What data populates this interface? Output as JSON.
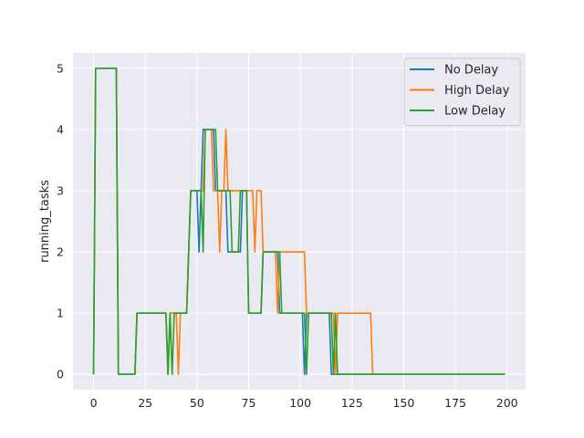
{
  "chart_data": {
    "type": "line",
    "title": "",
    "xlabel": "",
    "ylabel": "running_tasks",
    "xlim": [
      -9.95,
      208.95
    ],
    "ylim": [
      -0.25,
      5.25
    ],
    "xticks": [
      0,
      25,
      50,
      75,
      100,
      125,
      150,
      175,
      200
    ],
    "yticks": [
      0,
      1,
      2,
      3,
      4,
      5
    ],
    "grid": true,
    "legend_position": "top-right",
    "series": [
      {
        "name": "No Delay",
        "color": "#1f77b4",
        "points": [
          [
            0,
            0
          ],
          [
            1,
            5
          ],
          [
            11,
            5
          ],
          [
            12,
            0
          ],
          [
            20,
            0
          ],
          [
            21,
            1
          ],
          [
            35,
            1
          ],
          [
            36,
            0
          ],
          [
            37,
            1
          ],
          [
            45,
            1
          ],
          [
            47,
            3
          ],
          [
            50,
            3
          ],
          [
            51,
            2
          ],
          [
            52,
            3
          ],
          [
            53,
            4
          ],
          [
            58,
            4
          ],
          [
            59,
            3
          ],
          [
            64,
            3
          ],
          [
            65,
            2
          ],
          [
            71,
            2
          ],
          [
            72,
            3
          ],
          [
            74,
            3
          ],
          [
            75,
            1
          ],
          [
            81,
            1
          ],
          [
            82,
            2
          ],
          [
            89,
            2
          ],
          [
            90,
            1
          ],
          [
            101,
            1
          ],
          [
            102,
            0
          ],
          [
            103,
            1
          ],
          [
            114,
            1
          ],
          [
            115,
            0
          ],
          [
            199,
            0
          ]
        ]
      },
      {
        "name": "High Delay",
        "color": "#ff7f0e",
        "points": [
          [
            0,
            0
          ],
          [
            1,
            5
          ],
          [
            11,
            5
          ],
          [
            12,
            0
          ],
          [
            20,
            0
          ],
          [
            21,
            1
          ],
          [
            35,
            1
          ],
          [
            36,
            0
          ],
          [
            37,
            1
          ],
          [
            40,
            1
          ],
          [
            41,
            0
          ],
          [
            42,
            1
          ],
          [
            45,
            1
          ],
          [
            47,
            3
          ],
          [
            53,
            3
          ],
          [
            54,
            4
          ],
          [
            57,
            4
          ],
          [
            58,
            3
          ],
          [
            60,
            3
          ],
          [
            61,
            2
          ],
          [
            62,
            3
          ],
          [
            63,
            3
          ],
          [
            64,
            4
          ],
          [
            65,
            3
          ],
          [
            77,
            3
          ],
          [
            78,
            2
          ],
          [
            79,
            3
          ],
          [
            81,
            3
          ],
          [
            82,
            2
          ],
          [
            88,
            2
          ],
          [
            89,
            1
          ],
          [
            90,
            2
          ],
          [
            102,
            2
          ],
          [
            103,
            1
          ],
          [
            116,
            1
          ],
          [
            117,
            0
          ],
          [
            118,
            1
          ],
          [
            134,
            1
          ],
          [
            135,
            0
          ],
          [
            199,
            0
          ]
        ]
      },
      {
        "name": "Low Delay",
        "color": "#2ca02c",
        "points": [
          [
            0,
            0
          ],
          [
            1,
            5
          ],
          [
            11,
            5
          ],
          [
            12,
            0
          ],
          [
            20,
            0
          ],
          [
            21,
            1
          ],
          [
            35,
            1
          ],
          [
            36,
            0
          ],
          [
            37,
            1
          ],
          [
            38,
            0
          ],
          [
            39,
            1
          ],
          [
            45,
            1
          ],
          [
            47,
            3
          ],
          [
            52,
            3
          ],
          [
            53,
            2
          ],
          [
            54,
            4
          ],
          [
            59,
            4
          ],
          [
            60,
            3
          ],
          [
            66,
            3
          ],
          [
            67,
            2
          ],
          [
            70,
            2
          ],
          [
            71,
            3
          ],
          [
            74,
            3
          ],
          [
            75,
            1
          ],
          [
            81,
            1
          ],
          [
            82,
            2
          ],
          [
            90,
            2
          ],
          [
            91,
            1
          ],
          [
            102,
            1
          ],
          [
            103,
            0
          ],
          [
            104,
            1
          ],
          [
            115,
            1
          ],
          [
            116,
            0
          ],
          [
            117,
            1
          ],
          [
            118,
            0
          ],
          [
            199,
            0
          ]
        ]
      }
    ]
  }
}
